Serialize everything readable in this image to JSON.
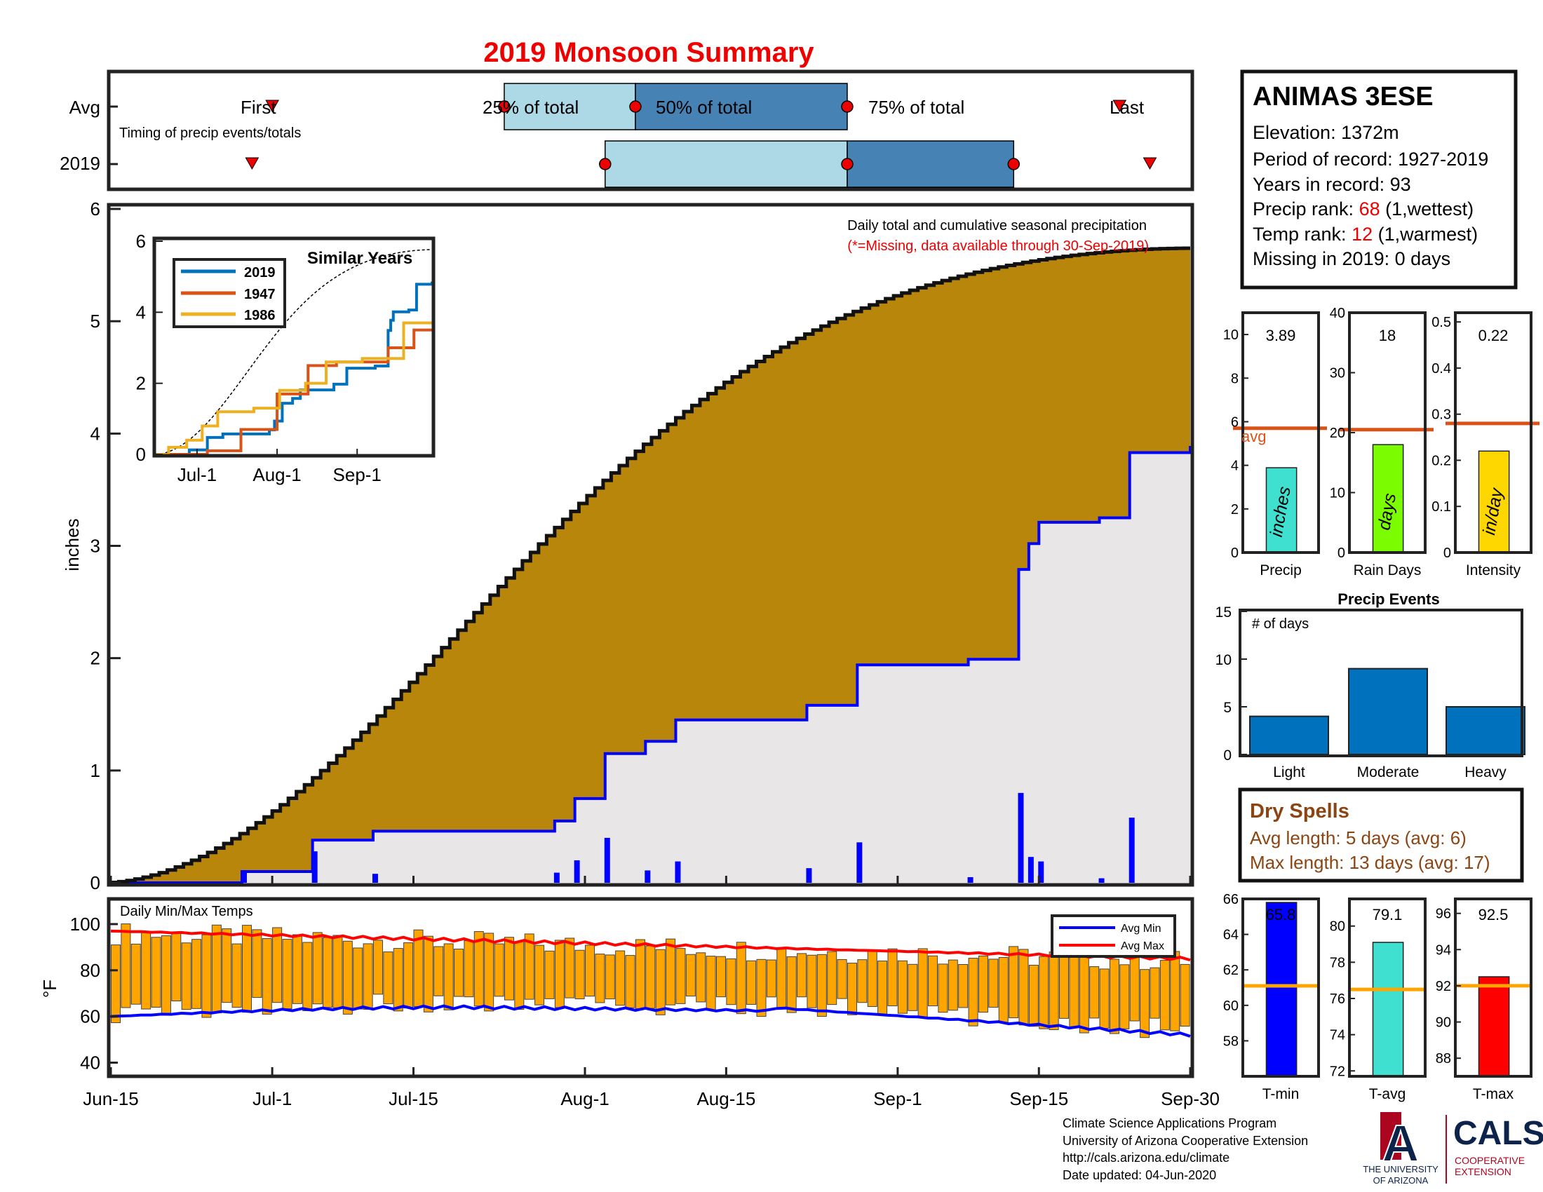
{
  "title": "2019 Monsoon Summary",
  "timing": {
    "row_labels": [
      "Avg",
      "2019"
    ],
    "caption": "Timing of precip events/totals",
    "first_label": "First",
    "last_label": "Last",
    "q25_label": "25% of total",
    "q50_label": "50% of total",
    "q75_label": "75% of total",
    "avg": {
      "first": 16,
      "q25": 39,
      "q50": 52,
      "q75": 73,
      "last": 100
    },
    "y2019": {
      "first": 14,
      "q25": 49,
      "q50": 73,
      "q75": 89.5,
      "last": 103
    },
    "colors": {
      "light": "#add8e6",
      "dark": "#4682b4",
      "marker": "#ee0000"
    }
  },
  "station": {
    "name": "ANIMAS 3ESE",
    "elevation": "Elevation: 1372m",
    "period": "Period of record: 1927-2019",
    "years": "Years in record: 93",
    "precip_rank_prefix": "Precip rank: ",
    "precip_rank_value": "68",
    "precip_rank_suffix": " (1,wettest)",
    "temp_rank_prefix": "Temp rank: ",
    "temp_rank_value": "12",
    "temp_rank_suffix": " (1,warmest)",
    "missing": "Missing in 2019: 0 days"
  },
  "stats": [
    {
      "axis_label": "Precip",
      "value": 3.89,
      "value_text": "3.89",
      "unit": "inches",
      "avg": 5.7,
      "ylim": [
        0,
        11
      ],
      "ticks": [
        0,
        2,
        4,
        6,
        8,
        10
      ],
      "color": "#40e0d0",
      "avg_label": "avg"
    },
    {
      "axis_label": "Rain Days",
      "value": 18,
      "value_text": "18",
      "unit": "days",
      "avg": 20.5,
      "ylim": [
        0,
        40
      ],
      "ticks": [
        0,
        10,
        20,
        30,
        40
      ],
      "color": "#7cfc00"
    },
    {
      "axis_label": "Intensity",
      "value": 0.22,
      "value_text": "0.22",
      "unit": "in/day",
      "avg": 0.28,
      "ylim": [
        0,
        0.52
      ],
      "ticks": [
        0,
        0.1,
        0.2,
        0.3,
        0.4,
        0.5
      ],
      "color": "#ffd700"
    }
  ],
  "precip_events": {
    "title": "Precip Events",
    "ylabel": "# of days",
    "categories": [
      "Light",
      "Moderate",
      "Heavy"
    ],
    "values": [
      4,
      9,
      5
    ],
    "ylim": [
      0,
      15
    ],
    "ticks": [
      0,
      5,
      10,
      15
    ],
    "color": "#0072bd"
  },
  "dry_spells": {
    "title": "Dry Spells",
    "avg_length": "Avg length: 5 days (avg: 6)",
    "max_length": "Max length: 13 days (avg: 17)",
    "color": "#8b4513"
  },
  "temp_stats": [
    {
      "axis_label": "T-min",
      "value": 65.8,
      "value_text": "65.8",
      "avg": 61.1,
      "ylim": [
        56,
        66
      ],
      "ticks": [
        58,
        60,
        62,
        64,
        66
      ],
      "color": "#0000ff"
    },
    {
      "axis_label": "T-avg",
      "value": 79.1,
      "value_text": "79.1",
      "avg": 76.5,
      "ylim": [
        71.7,
        81.5
      ],
      "ticks": [
        72,
        74,
        76,
        78,
        80
      ],
      "color": "#40e0d0"
    },
    {
      "axis_label": "T-max",
      "value": 92.5,
      "value_text": "92.5",
      "avg": 92,
      "ylim": [
        87,
        96.8
      ],
      "ticks": [
        88,
        90,
        92,
        94,
        96
      ],
      "color": "#ff0000"
    }
  ],
  "main_chart": {
    "ylabel": "inches",
    "ylim": [
      0,
      6
    ],
    "yticks": [
      0,
      1,
      2,
      3,
      4,
      5,
      6
    ],
    "xlim": [
      0,
      107
    ],
    "x_tick_days": [
      0,
      16,
      30,
      47,
      61,
      78,
      92,
      107
    ],
    "x_tick_labels": [
      "Jun-15",
      "Jul-1",
      "Jul-15",
      "Aug-1",
      "Aug-15",
      "Sep-1",
      "Sep-15",
      "Sep-30"
    ],
    "annotation": "Daily total and cumulative seasonal precipitation",
    "missing_note": "(*=Missing, data available through 30-Sep-2019)",
    "avg_cumulative_end": 5.65,
    "colors": {
      "avg_fill": "#b8860b",
      "obs_fill": "#e8e6e6",
      "obs_line": "#0000ff",
      "daily_bar": "#0000ff"
    }
  },
  "chart_data": [
    {
      "type": "bar",
      "title": "Daily total and cumulative seasonal precipitation",
      "ylabel": "inches",
      "x_unit": "days since Jun-15",
      "series": [
        {
          "name": "Daily precip",
          "x": [
            13,
            20,
            26,
            44,
            46,
            49,
            53,
            56,
            69,
            74,
            85,
            90,
            91,
            92,
            98,
            101
          ],
          "values": [
            0.1,
            0.28,
            0.08,
            0.09,
            0.2,
            0.4,
            0.11,
            0.19,
            0.13,
            0.36,
            0.05,
            0.8,
            0.23,
            0.19,
            0.04,
            0.58
          ]
        },
        {
          "name": "Cumulative 2019",
          "x": [
            0,
            13,
            20,
            26,
            44,
            46,
            49,
            53,
            56,
            69,
            74,
            85,
            90,
            91,
            92,
            98,
            101,
            107
          ],
          "values": [
            0,
            0.1,
            0.38,
            0.46,
            0.55,
            0.75,
            1.15,
            1.26,
            1.45,
            1.58,
            1.94,
            1.99,
            2.79,
            3.02,
            3.21,
            3.25,
            3.83,
            3.89
          ]
        }
      ]
    },
    {
      "type": "line",
      "title": "Similar Years",
      "x_tick_labels": [
        "Jul-1",
        "Aug-1",
        "Sep-1"
      ],
      "ylim": [
        0,
        6
      ],
      "yticks": [
        0,
        2,
        4,
        6
      ],
      "series": [
        {
          "name": "2019",
          "color": "#0072bd"
        },
        {
          "name": "1947",
          "color": "#d95319"
        },
        {
          "name": "1986",
          "color": "#edb120"
        }
      ]
    },
    {
      "type": "bar",
      "title": "Daily Min/Max Temps",
      "ylabel": "°F",
      "ylim": [
        35,
        110
      ],
      "yticks": [
        40,
        60,
        80,
        100
      ],
      "series": [
        {
          "name": "Avg Min",
          "color": "#0000ff"
        },
        {
          "name": "Avg Max",
          "color": "#ff0000"
        }
      ],
      "bar_color": "#ffa500"
    }
  ],
  "footer": {
    "line1": "Climate Science Applications Program",
    "line2": "University of Arizona Cooperative Extension",
    "line3": "http://cals.arizona.edu/climate",
    "line4": " Date updated: 04-Jun-2020"
  },
  "logos": {
    "ua_letter": "A",
    "ua_line1": "THE UNIVERSITY",
    "ua_line2": "OF ARIZONA",
    "cals": "CALS",
    "cals_line1": "COOPERATIVE",
    "cals_line2": "EXTENSION",
    "ua_color": "#0c234b",
    "ua_accent": "#ab0520"
  }
}
